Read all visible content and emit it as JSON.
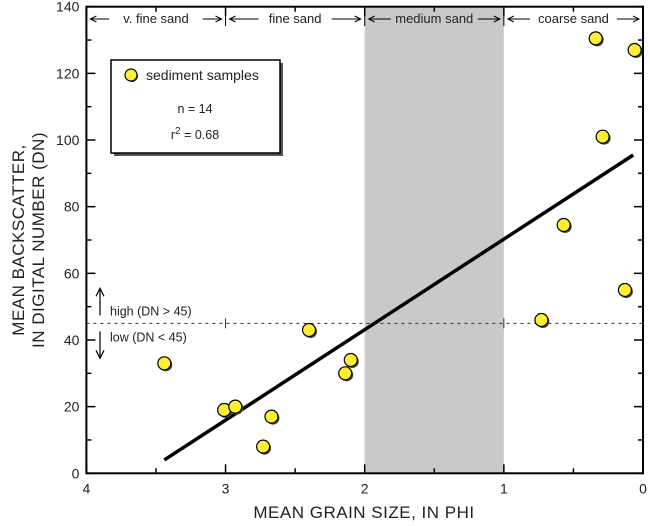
{
  "chart_data": {
    "type": "scatter",
    "xlabel": "MEAN GRAIN SIZE, IN PHI",
    "ylabel_lines": [
      "MEAN BACKSCATTER,",
      "IN DIGITAL NUMBER (DN)"
    ],
    "xlim": [
      4,
      0
    ],
    "ylim": [
      0,
      140
    ],
    "x_reversed": true,
    "x_ticks": [
      4,
      3,
      2,
      1,
      0
    ],
    "y_ticks": [
      0,
      20,
      40,
      60,
      80,
      100,
      120,
      140
    ],
    "grid": false,
    "legend": {
      "placement": "top-left",
      "series_label": "sediment samples",
      "n_text": "n = 14",
      "r2_prefix": "r",
      "r2_sup": "2",
      "r2_suffix": " = 0.68"
    },
    "series": [
      {
        "name": "sediment samples",
        "color": "#ffee33",
        "points": [
          [
            3.44,
            33
          ],
          [
            3.01,
            19
          ],
          [
            2.93,
            20
          ],
          [
            2.73,
            8
          ],
          [
            2.67,
            17
          ],
          [
            2.4,
            43
          ],
          [
            2.14,
            30
          ],
          [
            2.1,
            34
          ],
          [
            0.73,
            46
          ],
          [
            0.57,
            74.5
          ],
          [
            0.34,
            130.5
          ],
          [
            0.29,
            101
          ],
          [
            0.13,
            55
          ],
          [
            0.06,
            127
          ]
        ]
      }
    ],
    "regression_line": {
      "x": [
        3.44,
        0.07
      ],
      "y": [
        4,
        95.5
      ]
    },
    "threshold": {
      "y": 45,
      "high_label": "high (DN > 45)",
      "low_label": "low (DN < 45)"
    },
    "shaded_band": {
      "x": [
        2,
        1
      ],
      "color": "#c8c9cb"
    },
    "zones": [
      {
        "label": "v. fine sand",
        "from": 4,
        "to": 3
      },
      {
        "label": "fine sand",
        "from": 3,
        "to": 2
      },
      {
        "label": "medium sand",
        "from": 2,
        "to": 1
      },
      {
        "label": "coarse sand",
        "from": 1,
        "to": 0
      }
    ]
  }
}
